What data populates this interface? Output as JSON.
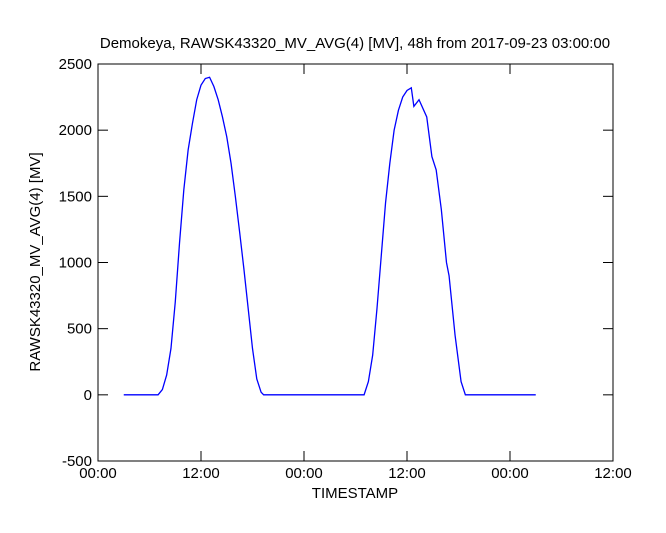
{
  "chart_data": {
    "type": "line",
    "title": "Demokeya, RAWSK43320_MV_AVG(4) [MV], 48h from  2017-09-23 03:00:00",
    "xlabel": "TIMESTAMP",
    "ylabel": "RAWSK43320_MV_AVG(4) [MV]",
    "x": [
      3,
      7,
      7.5,
      8,
      8.5,
      9,
      9.5,
      10,
      10.5,
      11,
      11.5,
      12,
      12.5,
      13,
      13.5,
      14,
      14.5,
      15,
      15.5,
      16,
      16.5,
      17,
      17.5,
      18,
      18.5,
      19,
      19.3,
      31,
      31.5,
      32,
      32.5,
      33,
      33.5,
      34,
      34.5,
      35,
      35.5,
      36,
      36.5,
      36.8,
      37.4,
      38.3,
      38.9,
      39.4,
      40,
      40.6,
      40.9,
      41.6,
      42.3,
      42.8,
      51
    ],
    "series": [
      {
        "name": "RAWSK43320_MV_AVG(4)",
        "color": "#0000ff",
        "values": [
          0,
          0,
          40,
          150,
          350,
          700,
          1150,
          1550,
          1850,
          2050,
          2230,
          2340,
          2390,
          2400,
          2330,
          2230,
          2100,
          1950,
          1750,
          1500,
          1230,
          950,
          650,
          350,
          120,
          20,
          0,
          0,
          100,
          300,
          650,
          1050,
          1450,
          1750,
          2000,
          2150,
          2250,
          2300,
          2320,
          2180,
          2230,
          2100,
          1800,
          1700,
          1400,
          1000,
          900,
          450,
          100,
          0,
          0
        ]
      }
    ],
    "xlim": [
      0,
      60
    ],
    "xticks": [
      {
        "value": 0,
        "label": "00:00"
      },
      {
        "value": 12,
        "label": "12:00"
      },
      {
        "value": 24,
        "label": "00:00"
      },
      {
        "value": 36,
        "label": "12:00"
      },
      {
        "value": 48,
        "label": "00:00"
      },
      {
        "value": 60,
        "label": "12:00"
      }
    ],
    "ylim": [
      -500,
      2500
    ],
    "yticks": [
      -500,
      0,
      500,
      1000,
      1500,
      2000,
      2500
    ]
  }
}
